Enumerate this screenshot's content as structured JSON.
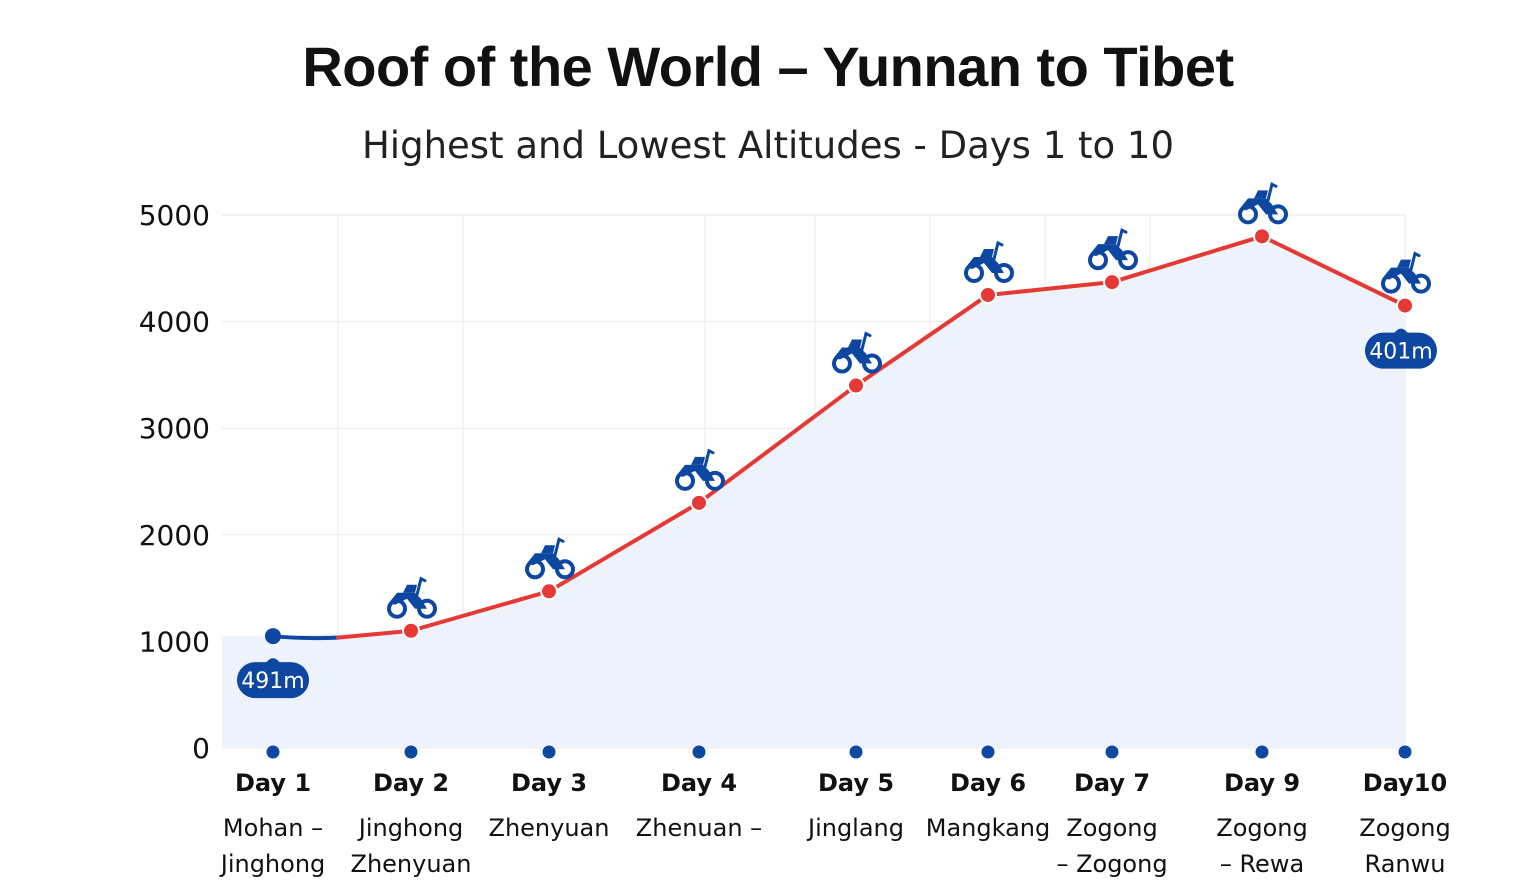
{
  "colors": {
    "line": "#e53935",
    "point": "#e53935",
    "start_segment": "#0d47a1",
    "marker": "#0d47a1",
    "fill": "#eef2fb",
    "grid": "#e6e9ef"
  },
  "icons": {
    "rider": "motorcycle-icon",
    "pin": "map-pin-icon"
  },
  "chart_data": {
    "type": "line",
    "title": "Roof of the World – Yunnan to Tibet",
    "subtitle": "Highest and Lowest Altitudes - Days 1 to 10",
    "ylim": [
      0,
      5000
    ],
    "yticks": [
      "0",
      "1000",
      "2000",
      "3000",
      "4000",
      "5000"
    ],
    "grid": true,
    "categories": [
      {
        "day": "Day 1",
        "place_line1": "Mohan –",
        "place_line2": "Jinghong"
      },
      {
        "day": "Day 2",
        "place_line1": "Jinghong",
        "place_line2": "Zhenyuan"
      },
      {
        "day": "Day 3",
        "place_line1": "Zhenyuan",
        "place_line2": ""
      },
      {
        "day": "Day 4",
        "place_line1": "Zhenuan –",
        "place_line2": ""
      },
      {
        "day": "Day 5",
        "place_line1": "Jinglang",
        "place_line2": ""
      },
      {
        "day": "Day 6",
        "place_line1": "Mangkang",
        "place_line2": ""
      },
      {
        "day": "Day 7",
        "place_line1": "Zogong",
        "place_line2": "– Zogong"
      },
      {
        "day": "Day 9",
        "place_line1": "Zogong",
        "place_line2": "– Rewa"
      },
      {
        "day": "Day10",
        "place_line1": "Zogong",
        "place_line2": "Ranwu"
      }
    ],
    "values": [
      1050,
      1100,
      1470,
      2300,
      3400,
      4250,
      4370,
      4800,
      4150
    ],
    "annotations": [
      {
        "index": 0,
        "text": "491m"
      },
      {
        "index": 8,
        "text": "401m"
      }
    ]
  }
}
